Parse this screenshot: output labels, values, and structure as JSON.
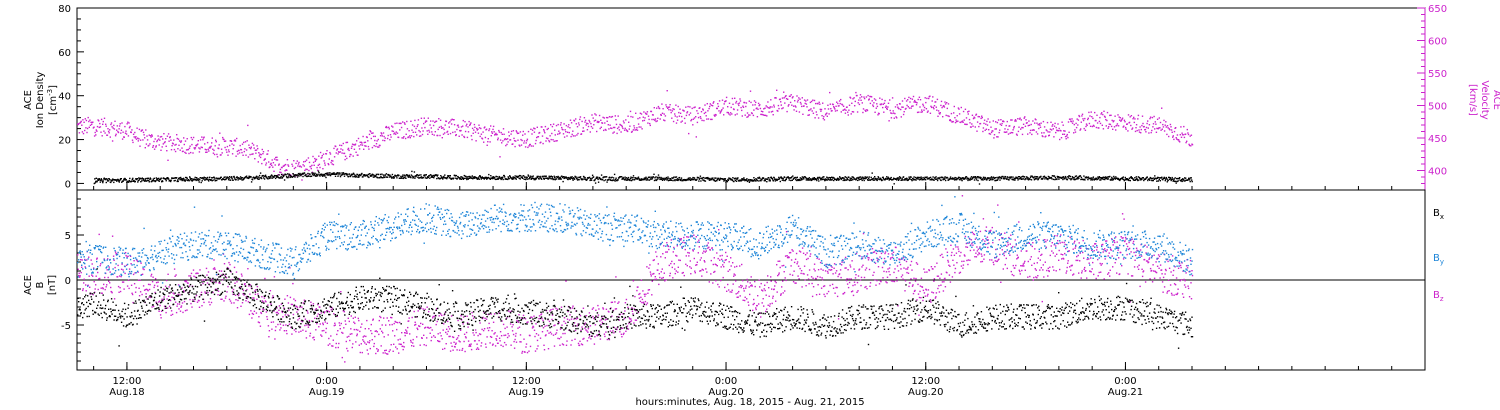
{
  "colors": {
    "bx": "#000000",
    "by": "#1f86d8",
    "bz": "#cc22cc",
    "density": "#000000",
    "velocity": "#cc22cc"
  },
  "xaxis": {
    "title": "hours:minutes, Aug. 18, 2015 - Aug. 21, 2015",
    "time_range_hours": [
      9,
      90
    ],
    "ticks": [
      {
        "hours": 12,
        "time": "12:00",
        "date": "Aug.18"
      },
      {
        "hours": 24,
        "time": "0:00",
        "date": "Aug.19"
      },
      {
        "hours": 36,
        "time": "12:00",
        "date": "Aug.19"
      },
      {
        "hours": 48,
        "time": "0:00",
        "date": "Aug.20"
      },
      {
        "hours": 60,
        "time": "12:00",
        "date": "Aug.20"
      },
      {
        "hours": 72,
        "time": "0:00",
        "date": "Aug.21"
      }
    ]
  },
  "top_panel": {
    "left_label_lines": [
      "ACE",
      "Ion Density",
      "[cm",
      "-3",
      "]"
    ],
    "right_label_lines": [
      "ACE",
      "Velocity",
      "[km/s]"
    ]
  },
  "bottom_panel": {
    "left_label_lines": [
      "ACE",
      "B",
      "[nT]"
    ]
  },
  "legend": [
    {
      "name": "B",
      "sub": "x",
      "color_key": "bx"
    },
    {
      "name": "B",
      "sub": "y",
      "color_key": "by"
    },
    {
      "name": "B",
      "sub": "z",
      "color_key": "bz"
    }
  ],
  "chart_data": [
    {
      "type": "scatter",
      "panel": "top",
      "x_unit": "hours since Aug. 18, 2015 0:00",
      "ylim_left": [
        -3,
        80
      ],
      "ylim_right": [
        370,
        650
      ],
      "yticks_left": [
        0,
        20,
        40,
        60,
        80
      ],
      "yticks_right": [
        400,
        450,
        500,
        550,
        600,
        650
      ],
      "series": [
        {
          "name": "Ion Density",
          "axis": "left",
          "color_key": "density",
          "x": [
            10,
            14,
            18,
            20,
            22,
            24,
            26,
            28,
            30,
            32,
            36,
            40,
            44,
            48,
            52,
            56,
            60,
            64,
            68,
            72,
            76
          ],
          "y": [
            1.5,
            2,
            2.5,
            3,
            4,
            4.5,
            4,
            3.5,
            3.5,
            3,
            3,
            2.5,
            2.5,
            2,
            2.5,
            2.5,
            2.5,
            2.5,
            3,
            2.5,
            2
          ]
        },
        {
          "name": "Velocity",
          "axis": "right",
          "color_key": "velocity",
          "x": [
            9,
            10,
            12,
            13,
            14,
            16,
            18,
            19,
            20,
            21,
            22,
            23,
            24,
            26,
            28,
            30,
            32,
            34,
            36,
            38,
            40,
            42,
            44,
            46,
            48,
            50,
            52,
            54,
            56,
            58,
            60,
            62,
            64,
            66,
            68,
            70,
            72,
            74,
            76
          ],
          "y": [
            468,
            470,
            462,
            448,
            445,
            440,
            438,
            435,
            425,
            410,
            405,
            410,
            420,
            440,
            460,
            470,
            465,
            455,
            450,
            462,
            475,
            470,
            490,
            485,
            500,
            495,
            505,
            490,
            505,
            495,
            505,
            485,
            465,
            470,
            460,
            480,
            475,
            470,
            450
          ]
        }
      ]
    },
    {
      "type": "scatter",
      "panel": "bottom",
      "x_unit": "hours since Aug. 18, 2015 0:00",
      "ylim": [
        -10,
        10
      ],
      "yticks": [
        -5,
        0,
        5
      ],
      "series": [
        {
          "name": "Bx",
          "color_key": "bx",
          "x": [
            9,
            10,
            12,
            14,
            16,
            18,
            20,
            22,
            24,
            26,
            28,
            30,
            32,
            34,
            36,
            38,
            40,
            42,
            44,
            46,
            48,
            50,
            52,
            54,
            56,
            58,
            60,
            62,
            64,
            66,
            68,
            70,
            72,
            74,
            76
          ],
          "y": [
            -3,
            -2.5,
            -4,
            -2,
            -1,
            0,
            -2,
            -4,
            -3,
            -2,
            -2,
            -3,
            -4,
            -3,
            -3.5,
            -4,
            -5,
            -4,
            -4,
            -3,
            -4,
            -5,
            -4,
            -5,
            -4,
            -4,
            -3,
            -5,
            -4,
            -4,
            -4,
            -3,
            -3,
            -4,
            -5
          ]
        },
        {
          "name": "By",
          "color_key": "by",
          "x": [
            9,
            10,
            12,
            14,
            16,
            18,
            20,
            22,
            24,
            26,
            28,
            30,
            32,
            34,
            36,
            38,
            40,
            42,
            44,
            46,
            48,
            50,
            52,
            54,
            56,
            58,
            60,
            62,
            64,
            66,
            68,
            70,
            72,
            74,
            76
          ],
          "y": [
            2,
            2.5,
            2,
            3,
            4,
            4,
            3,
            2,
            5,
            5,
            6,
            7,
            6,
            7,
            7,
            7,
            6,
            6,
            5,
            5,
            5,
            4,
            6,
            3,
            4,
            3,
            5,
            6,
            4,
            5,
            5,
            4,
            4,
            4,
            2
          ]
        },
        {
          "name": "Bz",
          "color_key": "bz",
          "x": [
            9,
            10,
            12,
            14,
            16,
            18,
            20,
            22,
            24,
            26,
            28,
            30,
            32,
            34,
            36,
            38,
            40,
            42,
            44,
            46,
            48,
            50,
            52,
            54,
            56,
            58,
            60,
            62,
            64,
            66,
            68,
            70,
            72,
            74,
            76
          ],
          "y": [
            1,
            0.5,
            1,
            -2,
            -1,
            0,
            -3,
            -4,
            -5,
            -6,
            -6,
            -5,
            -6,
            -5,
            -6,
            -5,
            -5,
            -4,
            2,
            3,
            1,
            -2,
            2,
            0,
            1,
            2,
            -1,
            3,
            4,
            2,
            3,
            2,
            3,
            1,
            0
          ]
        }
      ]
    }
  ]
}
